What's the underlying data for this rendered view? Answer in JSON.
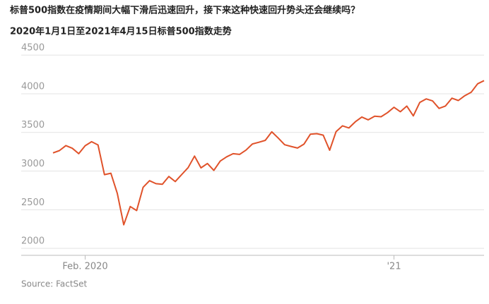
{
  "chart_data": {
    "type": "line",
    "title": "标普500指数在疫情期间大幅下滑后迅速回升，接下来这种快速回升势头还会继续吗？",
    "subtitle": "2020年1月1日至2021年4月15日标普500指数走势",
    "source": "Source: FactSet",
    "categories": [
      null,
      null,
      null,
      null,
      null,
      "Feb. 2020",
      null,
      null,
      null,
      null,
      null,
      null,
      null,
      null,
      null,
      null,
      null,
      null,
      null,
      null,
      null,
      null,
      null,
      null,
      null,
      null,
      null,
      null,
      null,
      null,
      null,
      null,
      null,
      null,
      null,
      null,
      null,
      null,
      null,
      null,
      null,
      null,
      null,
      null,
      null,
      null,
      null,
      null,
      null,
      null,
      null,
      null,
      null,
      "'21",
      null,
      null,
      null,
      null,
      null,
      null,
      null,
      null,
      null,
      null,
      null,
      null,
      null,
      null
    ],
    "series": [
      {
        "name": "S&P 500",
        "color": "#e0522a",
        "values": [
          3235,
          3265,
          3330,
          3295,
          3225,
          3328,
          3380,
          3338,
          2954,
          2972,
          2711,
          2305,
          2541,
          2489,
          2790,
          2875,
          2837,
          2830,
          2930,
          2864,
          2955,
          3044,
          3194,
          3041,
          3098,
          3009,
          3130,
          3185,
          3225,
          3216,
          3271,
          3351,
          3373,
          3397,
          3508,
          3427,
          3341,
          3319,
          3298,
          3348,
          3477,
          3484,
          3465,
          3270,
          3510,
          3585,
          3558,
          3638,
          3699,
          3663,
          3709,
          3703,
          3756,
          3825,
          3768,
          3841,
          3714,
          3887,
          3934,
          3907,
          3811,
          3842,
          3943,
          3913,
          3975,
          4020,
          4129,
          4170
        ]
      }
    ],
    "ylim": [
      1910,
      4620
    ],
    "yticks": [
      2000,
      2500,
      3000,
      3500,
      4000,
      4500
    ],
    "grid": true
  }
}
